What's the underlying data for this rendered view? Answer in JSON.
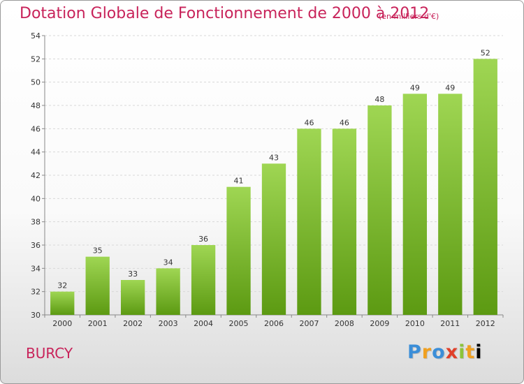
{
  "header": {
    "title": "Dotation Globale de Fonctionnement de 2000 à 2012",
    "subtitle": "(en milliers d'€)"
  },
  "footer": {
    "commune": "BURCY",
    "logo_letters": [
      "P",
      "r",
      "o",
      "x",
      "i",
      "t",
      "i"
    ]
  },
  "colors": {
    "bar_top": "#9fd653",
    "bar_bottom": "#5c9a12",
    "title": "#c8235a"
  },
  "chart_data": {
    "type": "bar",
    "categories": [
      "2000",
      "2001",
      "2002",
      "2003",
      "2004",
      "2005",
      "2006",
      "2007",
      "2008",
      "2009",
      "2010",
      "2011",
      "2012"
    ],
    "values": [
      32,
      35,
      33,
      34,
      36,
      41,
      43,
      46,
      46,
      48,
      49,
      49,
      52
    ],
    "data_labels": [
      "32",
      "35",
      "33",
      "34",
      "36",
      "41",
      "43",
      "46",
      "46",
      "48",
      "49",
      "49",
      "52"
    ],
    "title": "Dotation Globale de Fonctionnement de 2000 à 2012",
    "subtitle": "(en milliers d'€)",
    "xlabel": "",
    "ylabel": "",
    "ylim": [
      30,
      54
    ],
    "yticks": [
      30,
      32,
      34,
      36,
      38,
      40,
      42,
      44,
      46,
      48,
      50,
      52,
      54
    ],
    "grid": true
  }
}
